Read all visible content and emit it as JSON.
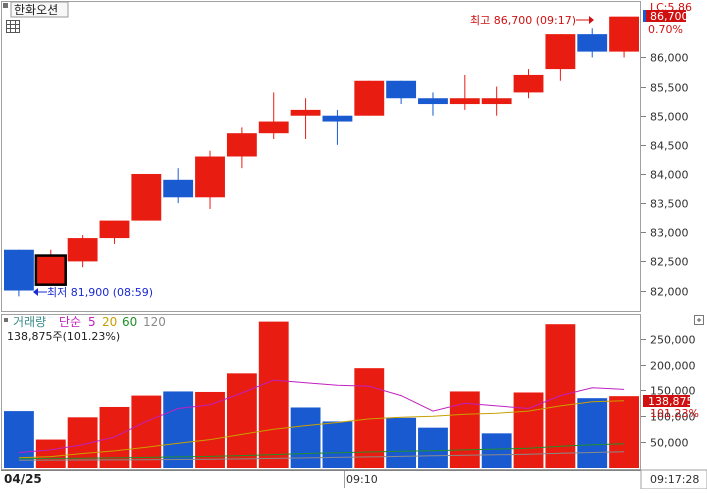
{
  "title_tab": "한화오션",
  "top_right_cut": "LC:5.86",
  "chart_data": [
    {
      "type": "candlestick",
      "x_label_date": "04/25",
      "x_label_time": "09:10",
      "last_time": "09:17:28",
      "ylim": [
        81700,
        86900
      ],
      "y_ticks": [
        82000,
        82500,
        83000,
        83500,
        84000,
        84500,
        85000,
        85500,
        86000
      ],
      "y_tick_labels": [
        "82,000",
        "82,500",
        "83,000",
        "83,500",
        "84,000",
        "84,500",
        "85,000",
        "85,500",
        "86,000"
      ],
      "candles": [
        {
          "o": 82700,
          "c": 82000,
          "h": 82700,
          "l": 81900
        },
        {
          "o": 82100,
          "c": 82600,
          "h": 82700,
          "l": 82100
        },
        {
          "o": 82500,
          "c": 82900,
          "h": 82950,
          "l": 82400
        },
        {
          "o": 82900,
          "c": 83200,
          "h": 83200,
          "l": 82800
        },
        {
          "o": 83200,
          "c": 84000,
          "h": 84000,
          "l": 83200
        },
        {
          "o": 83900,
          "c": 83600,
          "h": 84100,
          "l": 83500
        },
        {
          "o": 83600,
          "c": 84300,
          "h": 84400,
          "l": 83400
        },
        {
          "o": 84300,
          "c": 84700,
          "h": 84800,
          "l": 84100
        },
        {
          "o": 84700,
          "c": 84900,
          "h": 85400,
          "l": 84600
        },
        {
          "o": 85000,
          "c": 85100,
          "h": 85300,
          "l": 84600
        },
        {
          "o": 85000,
          "c": 84900,
          "h": 85100,
          "l": 84500
        },
        {
          "o": 85000,
          "c": 85600,
          "h": 85600,
          "l": 85000
        },
        {
          "o": 85600,
          "c": 85300,
          "h": 85600,
          "l": 85200
        },
        {
          "o": 85300,
          "c": 85200,
          "h": 85400,
          "l": 85000
        },
        {
          "o": 85200,
          "c": 85300,
          "h": 85700,
          "l": 85100
        },
        {
          "o": 85200,
          "c": 85300,
          "h": 85500,
          "l": 85000
        },
        {
          "o": 85400,
          "c": 85700,
          "h": 85800,
          "l": 85300
        },
        {
          "o": 85800,
          "c": 86400,
          "h": 86400,
          "l": 85600
        },
        {
          "o": 86400,
          "c": 86100,
          "h": 86500,
          "l": 86000
        },
        {
          "o": 86100,
          "c": 86700,
          "h": 86700,
          "l": 86000
        }
      ],
      "selected_candle": 1,
      "high_label": "최고 86,700 (09:17)",
      "low_label": "최저 81,900 (08:59)",
      "current_price": "86,700",
      "change_pct": "0.70%"
    },
    {
      "type": "bar",
      "legend": {
        "title": "거래량",
        "ma_label": "단순",
        "periods": [
          "5",
          "20",
          "60",
          "120"
        ]
      },
      "info": "138,875주(101.23%)",
      "ylim": [
        0,
        290000
      ],
      "y_ticks": [
        50000,
        100000,
        150000,
        200000,
        250000
      ],
      "y_tick_labels": [
        "50,000",
        "100,000",
        "150,000",
        "200,000",
        "250,000"
      ],
      "values": [
        110000,
        55000,
        98000,
        118000,
        140000,
        148000,
        147000,
        183000,
        283000,
        117000,
        90000,
        193000,
        97000,
        78000,
        148000,
        67000,
        146000,
        278000,
        135000,
        138875
      ],
      "up": [
        false,
        true,
        true,
        true,
        true,
        false,
        true,
        true,
        true,
        false,
        false,
        true,
        false,
        false,
        true,
        false,
        true,
        true,
        false,
        true
      ],
      "ma5": [
        30000,
        35000,
        45000,
        60000,
        90000,
        115000,
        122000,
        145000,
        170000,
        165000,
        160000,
        158000,
        140000,
        110000,
        125000,
        120000,
        115000,
        140000,
        155000,
        152000
      ],
      "ma20": [
        20000,
        22000,
        28000,
        33000,
        40000,
        48000,
        55000,
        65000,
        75000,
        82000,
        88000,
        95000,
        98000,
        100000,
        104000,
        106000,
        110000,
        120000,
        128000,
        130000
      ],
      "ma60": [
        18000,
        18500,
        19000,
        19500,
        20500,
        21500,
        22500,
        24000,
        26000,
        28000,
        29500,
        31000,
        32500,
        33500,
        35000,
        36500,
        38000,
        42000,
        45000,
        47000
      ],
      "ma120": [
        15000,
        15200,
        15400,
        15600,
        16000,
        16500,
        17000,
        17500,
        18500,
        19500,
        20500,
        21500,
        22500,
        23500,
        24500,
        25500,
        26500,
        28500,
        30000,
        31500
      ],
      "current_label": "138,875",
      "current_pct": "101.23%"
    }
  ]
}
